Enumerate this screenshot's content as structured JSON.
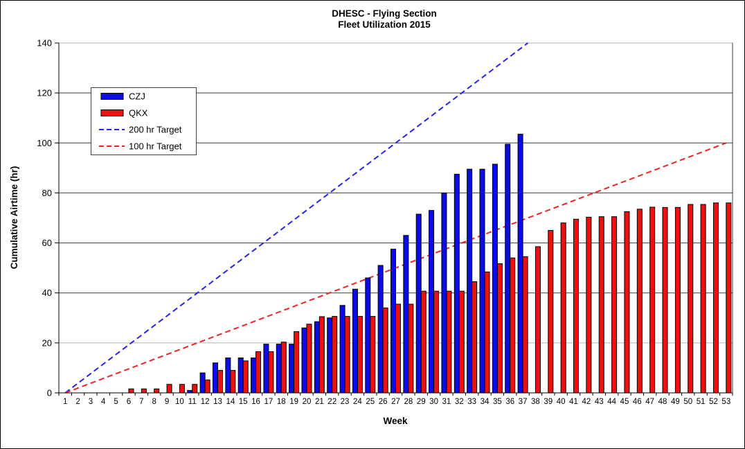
{
  "chart_data": {
    "type": "bar",
    "title": "DHESC - Flying Section",
    "subtitle": "Fleet Utilization 2015",
    "xlabel": "Week",
    "ylabel": "Cumulative Airtime (hr)",
    "ylim": [
      0,
      140
    ],
    "yticks": [
      0,
      20,
      40,
      60,
      80,
      100,
      120,
      140
    ],
    "grid": true,
    "legend_position": "upper-left",
    "background": "#ffffff",
    "axis_color": "#000000",
    "grid_color_light": "#b0b0b0",
    "grid_color_dark": "#3c3c3c",
    "categories": [
      1,
      2,
      3,
      4,
      5,
      6,
      7,
      8,
      9,
      10,
      11,
      12,
      13,
      14,
      15,
      16,
      17,
      18,
      19,
      20,
      21,
      22,
      23,
      24,
      25,
      26,
      27,
      28,
      29,
      30,
      31,
      32,
      33,
      34,
      35,
      36,
      37,
      38,
      39,
      40,
      41,
      42,
      43,
      44,
      45,
      46,
      47,
      48,
      49,
      50,
      51,
      52,
      53
    ],
    "series": [
      {
        "name": "CZJ",
        "color": "#0b0be8",
        "values": [
          0,
          0,
          0,
          0,
          0,
          0,
          0,
          0,
          0,
          0,
          1,
          8,
          12,
          14,
          14,
          14,
          19.5,
          19.5,
          19.5,
          26,
          28.5,
          30,
          35,
          41.5,
          46,
          51,
          57.5,
          63,
          71.5,
          73,
          80,
          87.5,
          89.5,
          89.5,
          91.5,
          99.5,
          103.5,
          null,
          null,
          null,
          null,
          null,
          null,
          null,
          null,
          null,
          null,
          null,
          null,
          null,
          null,
          null,
          null
        ]
      },
      {
        "name": "QKX",
        "color": "#ee0f0f",
        "values": [
          0,
          0,
          0,
          0,
          0,
          1.6,
          1.6,
          1.6,
          3.4,
          3.4,
          3.4,
          5.2,
          9,
          9,
          12.8,
          16.5,
          16.5,
          20.3,
          24.5,
          27.5,
          30.5,
          30.6,
          30.6,
          30.6,
          30.6,
          34,
          35.5,
          35.5,
          40.7,
          40.7,
          40.7,
          40.7,
          44.5,
          48.4,
          51.7,
          54,
          54.5,
          58.5,
          65,
          68,
          69.5,
          70.3,
          70.5,
          70.5,
          72.5,
          73.5,
          74.3,
          74.2,
          74.2,
          75.4,
          75.4,
          76,
          76
        ]
      }
    ],
    "targets": [
      {
        "name": "200 hr Target",
        "color": "#2424f0",
        "total_hours": 200
      },
      {
        "name": "100 hr Target",
        "color": "#f02424",
        "total_hours": 100
      }
    ]
  }
}
